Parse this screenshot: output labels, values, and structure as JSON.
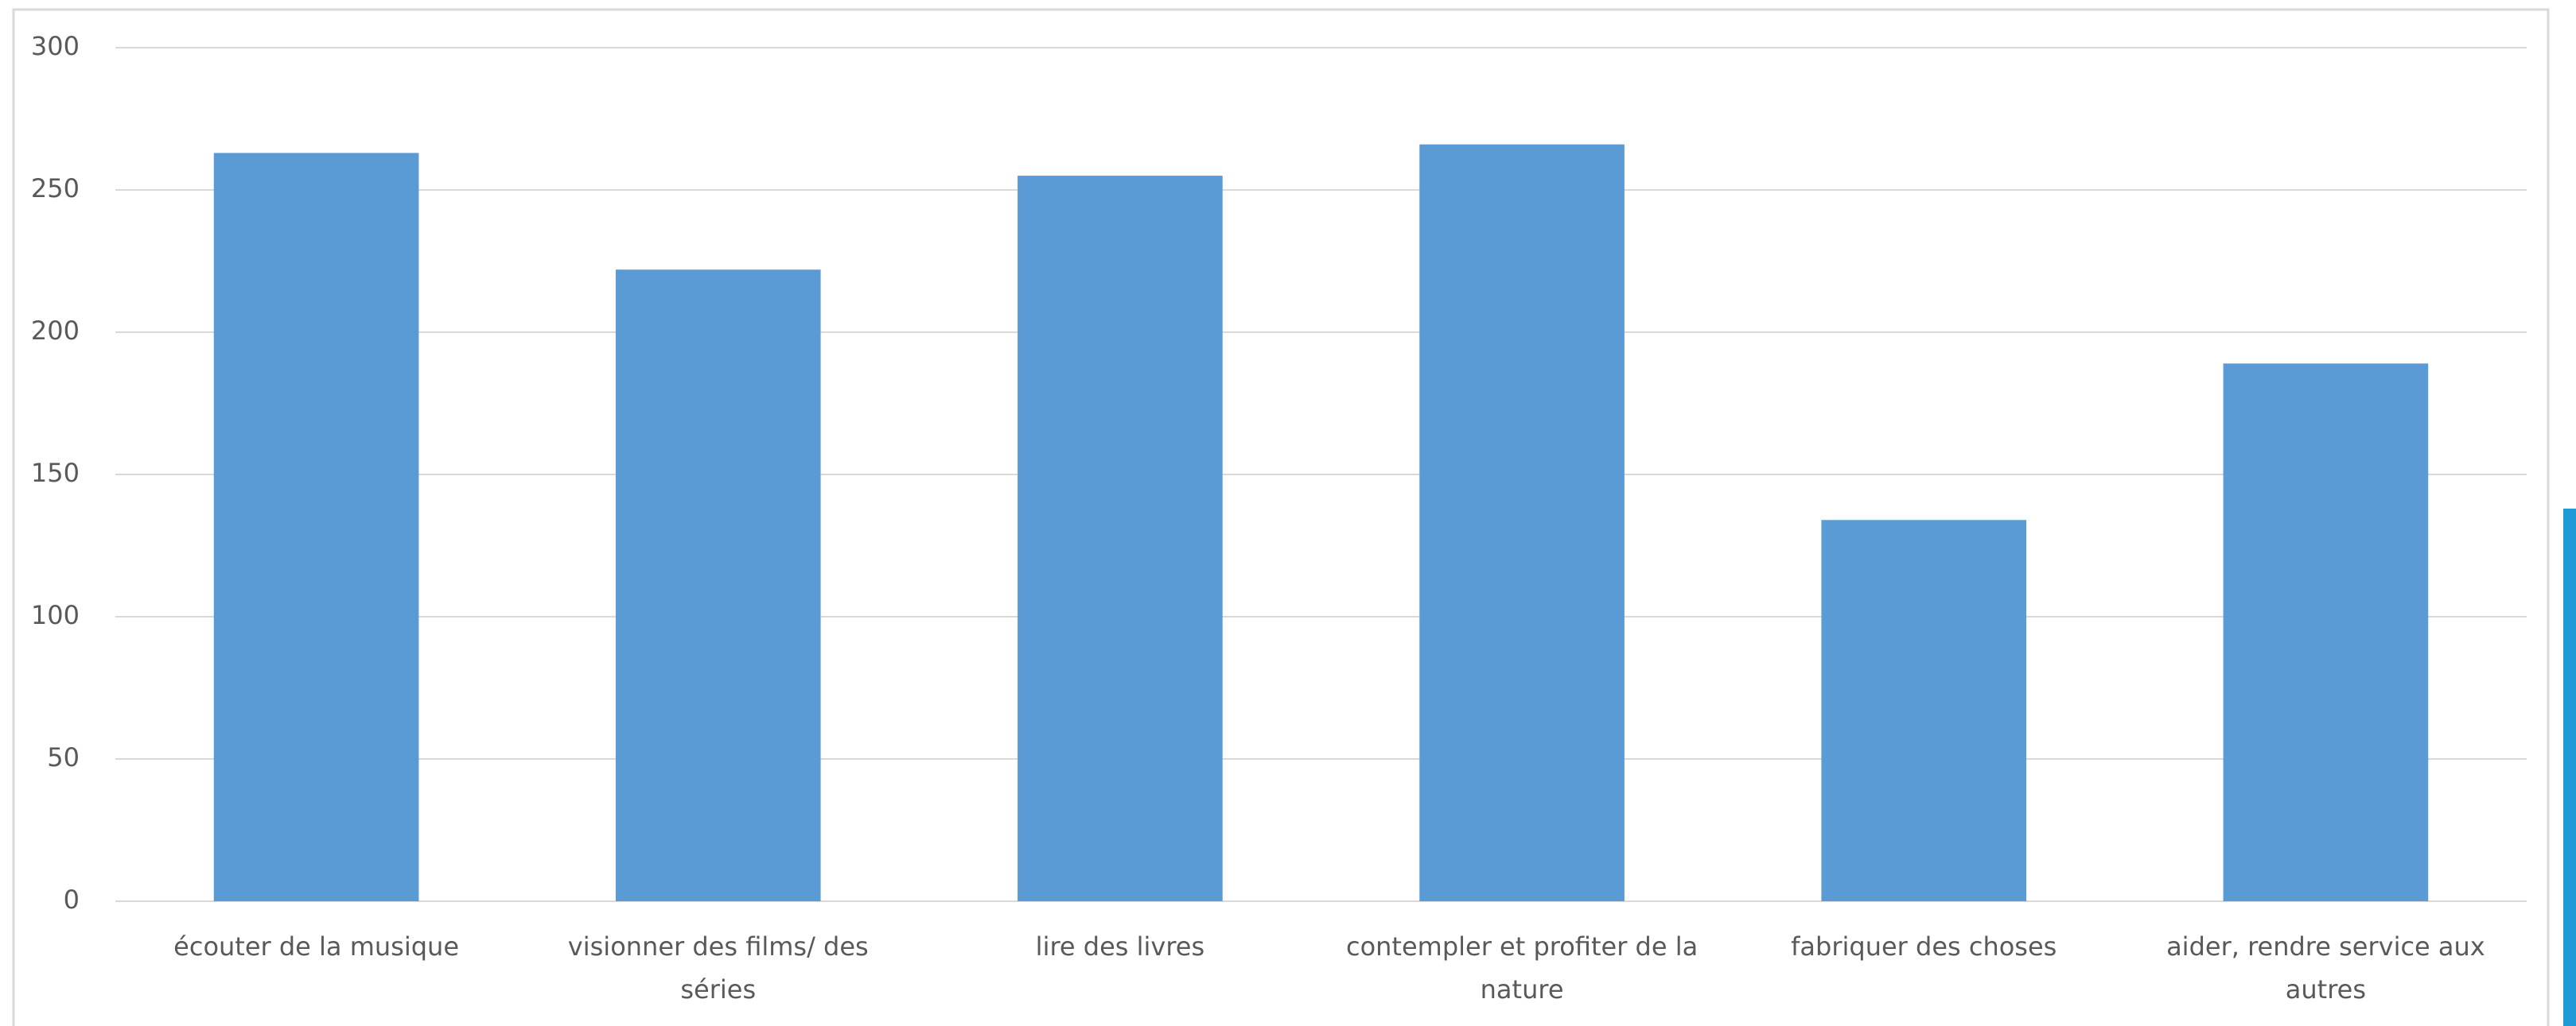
{
  "chart_data": {
    "type": "bar",
    "categories": [
      "écouter de la musique",
      "visionner des films/ des séries",
      "lire des livres",
      "contempler et profiter de la nature",
      "fabriquer des choses",
      "aider, rendre service aux autres"
    ],
    "values": [
      263,
      222,
      255,
      266,
      134,
      189
    ],
    "color": "#5b9bd5",
    "ylim": [
      0,
      300
    ],
    "yticks": [
      0,
      50,
      100,
      150,
      200,
      250,
      300
    ],
    "grid": true
  }
}
